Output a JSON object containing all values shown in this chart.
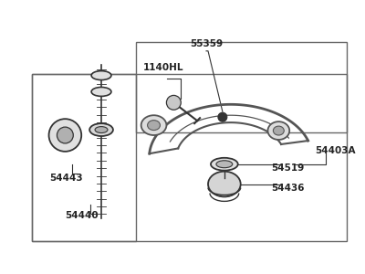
{
  "bg_color": "#ffffff",
  "line_color": "#333333",
  "text_color": "#222222",
  "border_color": "#666666",
  "fig_width": 4.0,
  "fig_height": 3.0,
  "dpi": 100,
  "arm_color": "#555555",
  "part_fill": "#cccccc",
  "part_fill2": "#aaaaaa",
  "dot_color": "#333333"
}
